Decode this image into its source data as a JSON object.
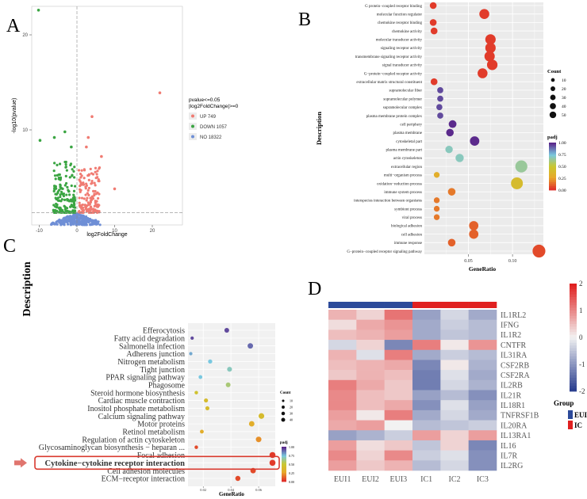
{
  "panel_letters": {
    "a": "A",
    "b": "B",
    "c": "C",
    "d": "D"
  },
  "colors": {
    "up": "#f07b72",
    "down": "#3ba543",
    "no": "#6f8fd6",
    "padj_high": "#5b2a8c",
    "padj_mid": "#79c8e0",
    "padj_low": "#e0322a",
    "heat_high": "#e02020",
    "heat_low": "#2b3f8f",
    "group_eu": "#2c4a9a",
    "group_ic": "#e02020",
    "highlight": "#d93a2f"
  },
  "chart_data": [
    {
      "panel": "A",
      "type": "scatter",
      "title": "",
      "xlabel": "log2FoldChange",
      "ylabel": "-log10(pvalue)",
      "xlim": [
        -12,
        28
      ],
      "ylim": [
        0,
        23
      ],
      "xticks": [
        "-10",
        "0",
        "10",
        "20"
      ],
      "xtick_values": [
        -10,
        0,
        10,
        20
      ],
      "yticks": [
        "10",
        "20"
      ],
      "ytick_values": [
        10,
        20
      ],
      "threshold_lines": {
        "x": 0,
        "y": 1.3
      },
      "legend_title": "pvalue<=0.05\n|log2FoldChange|>=0",
      "legend": [
        {
          "label": "UP 749",
          "color": "#f07b72"
        },
        {
          "label": "DOWN 1057",
          "color": "#3ba543"
        },
        {
          "label": "NO 18322",
          "color": "#6f8fd6"
        }
      ],
      "notable_points": [
        {
          "x": -10.2,
          "y": 22.6,
          "group": "down"
        },
        {
          "x": -9.8,
          "y": 8.9,
          "group": "down"
        },
        {
          "x": -6.0,
          "y": 9.2,
          "group": "down"
        },
        {
          "x": -3.2,
          "y": 9.8,
          "group": "down"
        },
        {
          "x": -1.5,
          "y": 8.2,
          "group": "down"
        },
        {
          "x": 22.0,
          "y": 13.9,
          "group": "up"
        },
        {
          "x": 4.0,
          "y": 11.4,
          "group": "up"
        },
        {
          "x": 3.0,
          "y": 9.2,
          "group": "up"
        },
        {
          "x": 2.5,
          "y": 8.2,
          "group": "up"
        },
        {
          "x": 6.5,
          "y": 7.2,
          "group": "up"
        },
        {
          "x": 10.0,
          "y": 3.8,
          "group": "up"
        }
      ]
    },
    {
      "panel": "B",
      "type": "scatter",
      "title": "",
      "xlabel": "GeneRatio",
      "ylabel": "Description",
      "xlim": [
        0.0,
        0.135
      ],
      "xticks": [
        "0.05",
        "0.10"
      ],
      "xtick_values": [
        0.05,
        0.1
      ],
      "categories": [
        "G protein−coupled receptor binding",
        "molecular function regulator",
        "chemokine receptor binding",
        "chemokine activity",
        "molecular transducer activity",
        "signaling receptor activity",
        "transmembrane signaling receptor activity",
        "signal transducer activity",
        "G−protein−coupled receptor activity",
        "extracellular matrix structural constituent",
        "supramolecular fiber",
        "supramolecular polymer",
        "supramolecular complex",
        "plasma membrane protein complex",
        "cell periphery",
        "plasma membrane",
        "cytoskeletal part",
        "plasma membrane part",
        "actin cytoskeleton",
        "extracellular region",
        "multi−organism process",
        "oxidation−reduction process",
        "immune system process",
        "interspecies interaction between organisms",
        "symbiont process",
        "viral process",
        "biological adhesion",
        "cell adhesion",
        "immune response",
        "G−protein−coupled receptor signaling pathway"
      ],
      "gene_ratio": [
        0.01,
        0.068,
        0.01,
        0.011,
        0.075,
        0.075,
        0.074,
        0.077,
        0.066,
        0.011,
        0.018,
        0.018,
        0.017,
        0.018,
        0.032,
        0.029,
        0.057,
        0.028,
        0.04,
        0.11,
        0.014,
        0.105,
        0.031,
        0.014,
        0.014,
        0.014,
        0.056,
        0.056,
        0.031,
        0.13
      ],
      "count": [
        10,
        30,
        10,
        10,
        34,
        34,
        33,
        35,
        30,
        10,
        7,
        7,
        7,
        7,
        15,
        14,
        26,
        13,
        18,
        50,
        6,
        48,
        14,
        6,
        6,
        6,
        25,
        25,
        14,
        58
      ],
      "padj": [
        0.02,
        0.02,
        0.02,
        0.02,
        0.02,
        0.02,
        0.02,
        0.02,
        0.02,
        0.02,
        0.95,
        0.95,
        0.95,
        0.95,
        1.0,
        1.0,
        1.0,
        0.7,
        0.7,
        0.65,
        0.3,
        0.4,
        0.15,
        0.15,
        0.15,
        0.15,
        0.1,
        0.1,
        0.1,
        0.05
      ],
      "size_legend_title": "Count",
      "size_legend": [
        "10",
        "20",
        "30",
        "40",
        "50"
      ],
      "size_legend_values": [
        10,
        20,
        30,
        40,
        50
      ],
      "color_legend_title": "padj",
      "color_legend": [
        "1.00",
        "0.75",
        "0.50",
        "0.25",
        "0.00"
      ]
    },
    {
      "panel": "C",
      "type": "scatter",
      "title": "",
      "xlabel": "GeneRatio",
      "ylabel": "Description",
      "xlim": [
        0.009,
        0.072
      ],
      "xticks": [
        "0.02",
        "0.04",
        "0.06"
      ],
      "xtick_values": [
        0.02,
        0.04,
        0.06
      ],
      "categories": [
        "Efferocytosis",
        "Fatty acid degradation",
        "Salmonella infection",
        "Adherens junction",
        "Nitrogen metabolism",
        "Tight junction",
        "PPAR signaling pathway",
        "Phagosome",
        "Steroid hormone biosynthesis",
        "Cardiac muscle contraction",
        "Inositol phosphate metabolism",
        "Calcium signaling pathway",
        "Motor proteins",
        "Retinol metabolism",
        "Regulation of actin cytoskeleton",
        "Glycosaminoglycan biosynthesis − heparan ...",
        "Focal adhesion",
        "Cytokine−cytokine receptor interaction",
        "Cell adhesion molecules",
        "ECM−receptor interaction"
      ],
      "gene_ratio": [
        0.037,
        0.012,
        0.054,
        0.011,
        0.025,
        0.039,
        0.018,
        0.038,
        0.015,
        0.022,
        0.023,
        0.062,
        0.055,
        0.019,
        0.06,
        0.015,
        0.07,
        0.07,
        0.056,
        0.045
      ],
      "count": [
        16,
        5,
        24,
        5,
        11,
        17,
        8,
        16,
        6,
        10,
        10,
        27,
        24,
        8,
        26,
        6,
        31,
        31,
        24,
        20
      ],
      "padj": [
        0.95,
        0.95,
        0.9,
        0.8,
        0.75,
        0.7,
        0.75,
        0.6,
        0.45,
        0.4,
        0.4,
        0.4,
        0.3,
        0.3,
        0.2,
        0.05,
        0.02,
        0.02,
        0.05,
        0.05
      ],
      "highlight": "Cytokine−cytokine receptor interaction",
      "size_legend_title": "Count",
      "size_legend": [
        "10",
        "20",
        "30",
        "40"
      ],
      "size_legend_values": [
        10,
        20,
        30,
        40
      ],
      "color_legend_title": "padj",
      "color_legend": [
        "1.00",
        "0.75",
        "0.50",
        "0.25",
        "0.00"
      ]
    },
    {
      "panel": "D",
      "type": "heatmap",
      "title": "",
      "columns": [
        "EUI1",
        "EUI2",
        "EUI3",
        "IC1",
        "IC2",
        "IC3"
      ],
      "column_groups": [
        "EUI",
        "EUI",
        "EUI",
        "IC",
        "IC",
        "IC"
      ],
      "rows": [
        "IL1RL2",
        "IFNG",
        "IL1R2",
        "CNTFR",
        "IL31RA",
        "CSF2RB",
        "CSF2RA",
        "IL2RB",
        "IL21R",
        "IL18R1",
        "TNFRSF1B",
        "IL20RA",
        "IL13RA1",
        "IL16",
        "IL7R",
        "IL2RG"
      ],
      "values": [
        [
          0.6,
          0.3,
          1.2,
          -0.9,
          -0.3,
          -0.8
        ],
        [
          0.2,
          0.7,
          0.9,
          -0.8,
          -0.4,
          -0.6
        ],
        [
          0.5,
          0.6,
          0.8,
          -0.8,
          -0.5,
          -0.6
        ],
        [
          -0.3,
          0.3,
          -1.2,
          1.1,
          0.1,
          0.9
        ],
        [
          0.6,
          -0.2,
          1.1,
          -0.8,
          -0.4,
          -0.6
        ],
        [
          0.5,
          0.6,
          0.7,
          -1.2,
          0.1,
          -0.7
        ],
        [
          0.4,
          0.6,
          0.5,
          -1.3,
          -0.2,
          -0.8
        ],
        [
          1.1,
          0.7,
          0.4,
          -1.3,
          -0.3,
          -0.7
        ],
        [
          1.0,
          0.5,
          0.4,
          -0.9,
          -0.6,
          -1.1
        ],
        [
          1.0,
          0.5,
          0.7,
          -1.1,
          -0.2,
          -0.9
        ],
        [
          0.8,
          0.1,
          1.1,
          -0.8,
          -0.3,
          -0.8
        ],
        [
          0.7,
          0.8,
          0.0,
          -0.6,
          -0.5,
          -0.4
        ],
        [
          -0.9,
          -0.7,
          -0.4,
          0.8,
          0.3,
          0.8
        ],
        [
          0.8,
          0.2,
          0.4,
          -0.5,
          0.3,
          -1.2
        ],
        [
          1.0,
          0.3,
          1.0,
          -0.4,
          -0.2,
          -1.1
        ],
        [
          0.8,
          0.4,
          0.6,
          -0.6,
          -0.3,
          -1.1
        ]
      ],
      "colorbar_ticks": [
        "2",
        "1",
        "0",
        "-1",
        "-2"
      ],
      "colorbar_values": [
        2,
        1,
        0,
        -1,
        -2
      ],
      "legend_title": "Group",
      "legend": [
        {
          "label": "EUI",
          "color": "#2c4a9a"
        },
        {
          "label": "IC",
          "color": "#e02020"
        }
      ]
    }
  ]
}
